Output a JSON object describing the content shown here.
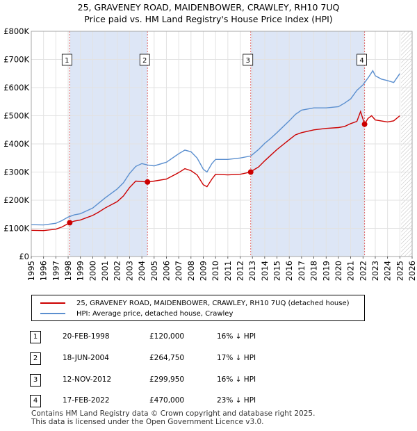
{
  "title_line1": "25, GRAVENEY ROAD, MAIDENBOWER, CRAWLEY, RH10 7UQ",
  "title_line2": "Price paid vs. HM Land Registry's House Price Index (HPI)",
  "legend": {
    "property_label": "25, GRAVENEY ROAD, MAIDENBOWER, CRAWLEY, RH10 7UQ (detached house)",
    "hpi_label": "HPI: Average price, detached house, Crawley"
  },
  "colors": {
    "property": "#cc0000",
    "hpi": "#5b8fcf",
    "shade": "#dde6f6",
    "vline": "#e06666"
  },
  "sales": [
    {
      "num": "1",
      "date": "20-FEB-1998",
      "price": "£120,000",
      "hpi_diff": "16% ↓ HPI"
    },
    {
      "num": "2",
      "date": "18-JUN-2004",
      "price": "£264,750",
      "hpi_diff": "17% ↓ HPI"
    },
    {
      "num": "3",
      "date": "12-NOV-2012",
      "price": "£299,950",
      "hpi_diff": "16% ↓ HPI"
    },
    {
      "num": "4",
      "date": "17-FEB-2022",
      "price": "£470,000",
      "hpi_diff": "23% ↓ HPI"
    }
  ],
  "footer_line1": "Contains HM Land Registry data © Crown copyright and database right 2025.",
  "footer_line2": "This data is licensed under the Open Government Licence v3.0.",
  "chart_data": {
    "type": "line",
    "title": "25, GRAVENEY ROAD, MAIDENBOWER, CRAWLEY, RH10 7UQ — Price paid vs. HM Land Registry's House Price Index (HPI)",
    "xlabel": "",
    "ylabel": "",
    "xlim": [
      1995,
      2026
    ],
    "ylim": [
      0,
      800000
    ],
    "x_ticks": [
      "1995",
      "1996",
      "1997",
      "1998",
      "1999",
      "2000",
      "2001",
      "2002",
      "2003",
      "2004",
      "2005",
      "2006",
      "2007",
      "2008",
      "2009",
      "2010",
      "2011",
      "2012",
      "2013",
      "2014",
      "2015",
      "2016",
      "2017",
      "2018",
      "2019",
      "2020",
      "2021",
      "2022",
      "2023",
      "2024",
      "2025",
      "2026"
    ],
    "y_ticks": [
      {
        "value": 0,
        "label": "£0"
      },
      {
        "value": 100000,
        "label": "£100K"
      },
      {
        "value": 200000,
        "label": "£200K"
      },
      {
        "value": 300000,
        "label": "£300K"
      },
      {
        "value": 400000,
        "label": "£400K"
      },
      {
        "value": 500000,
        "label": "£500K"
      },
      {
        "value": 600000,
        "label": "£600K"
      },
      {
        "value": 700000,
        "label": "£700K"
      },
      {
        "value": 800000,
        "label": "£800K"
      }
    ],
    "shaded_periods": [
      [
        1998.13,
        2004.46
      ],
      [
        2012.86,
        2022.13
      ]
    ],
    "hatched_from": 2025.1,
    "series": [
      {
        "name": "HPI: Average price, detached house, Crawley",
        "color": "#5b8fcf",
        "x": [
          1995,
          1996,
          1997,
          1997.5,
          1998,
          1998.5,
          1999,
          2000,
          2000.5,
          2001,
          2002,
          2002.5,
          2003,
          2003.5,
          2004,
          2004.5,
          2005,
          2006,
          2007,
          2007.5,
          2008,
          2008.5,
          2009,
          2009.3,
          2009.7,
          2010,
          2011,
          2012,
          2012.86,
          2013,
          2013.5,
          2014,
          2014.5,
          2015,
          2016,
          2016.5,
          2017,
          2018,
          2019,
          2020,
          2020.5,
          2021,
          2021.5,
          2022,
          2022.5,
          2022.8,
          2023,
          2023.5,
          2024,
          2024.5,
          2025
        ],
        "values": [
          113000,
          112000,
          118000,
          128000,
          140000,
          148000,
          152000,
          172000,
          190000,
          208000,
          240000,
          262000,
          295000,
          320000,
          330000,
          325000,
          322000,
          335000,
          365000,
          378000,
          372000,
          350000,
          310000,
          300000,
          330000,
          345000,
          345000,
          350000,
          357000,
          362000,
          380000,
          402000,
          420000,
          440000,
          482000,
          505000,
          520000,
          528000,
          528000,
          532000,
          545000,
          560000,
          590000,
          610000,
          640000,
          660000,
          642000,
          630000,
          625000,
          618000,
          650000
        ]
      },
      {
        "name": "25, GRAVENEY ROAD, MAIDENBOWER, CRAWLEY, RH10 7UQ (detached house)",
        "color": "#cc0000",
        "x": [
          1995,
          1996,
          1997,
          1997.5,
          1998.13,
          1998.5,
          1999,
          2000,
          2000.5,
          2001,
          2002,
          2002.5,
          2003,
          2003.5,
          2004.46,
          2005,
          2006,
          2007,
          2007.5,
          2008,
          2008.5,
          2009,
          2009.3,
          2009.7,
          2010,
          2011,
          2012,
          2012.86,
          2013,
          2013.5,
          2014,
          2014.5,
          2015,
          2016,
          2016.5,
          2017,
          2018,
          2019,
          2020,
          2020.5,
          2021,
          2021.5,
          2021.8,
          2022.13,
          2022.4,
          2022.7,
          2023,
          2024,
          2024.5,
          2025
        ],
        "values": [
          93000,
          92000,
          97000,
          105000,
          120000,
          126000,
          130000,
          146000,
          158000,
          172000,
          195000,
          215000,
          245000,
          268000,
          264750,
          268000,
          275000,
          298000,
          312000,
          305000,
          290000,
          255000,
          248000,
          275000,
          292000,
          290000,
          292000,
          299950,
          305000,
          318000,
          340000,
          360000,
          380000,
          415000,
          432000,
          440000,
          450000,
          455000,
          458000,
          462000,
          472000,
          480000,
          515000,
          470000,
          490000,
          500000,
          485000,
          478000,
          482000,
          500000
        ]
      }
    ],
    "sale_markers": [
      {
        "label": "1",
        "x": 1998.13,
        "value": 120000
      },
      {
        "label": "2",
        "x": 2004.46,
        "value": 264750
      },
      {
        "label": "3",
        "x": 2012.86,
        "value": 299950
      },
      {
        "label": "4",
        "x": 2022.13,
        "value": 470000
      }
    ]
  }
}
